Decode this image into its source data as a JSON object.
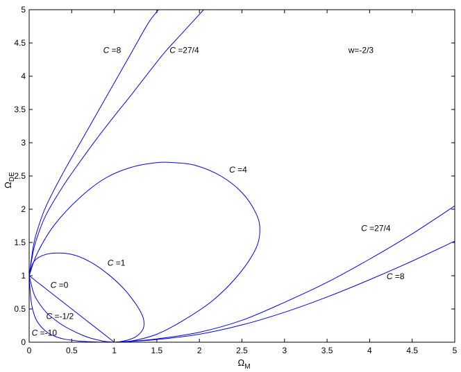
{
  "chart_data": {
    "type": "line",
    "title": "",
    "xlabel": {
      "main": "Ω",
      "sub": "M"
    },
    "ylabel": {
      "main": "Ω",
      "sub": "DE"
    },
    "xlim": [
      0,
      5
    ],
    "ylim": [
      0,
      5
    ],
    "xticks": [
      "0",
      "0.5",
      "1",
      "1.5",
      "2",
      "2.5",
      "3",
      "3.5",
      "4",
      "4.5",
      "5"
    ],
    "yticks": [
      "0",
      "0.5",
      "1",
      "1.5",
      "2",
      "2.5",
      "3",
      "3.5",
      "4",
      "4.5",
      "5"
    ],
    "grid": false,
    "line_color": "#0000ff",
    "annotation": "w=-2/3",
    "series": [
      {
        "name": "C =8",
        "x": [
          0,
          0.05,
          0.1,
          0.2,
          0.4,
          0.6,
          0.8,
          1.0,
          1.2,
          1.4,
          1.52
        ],
        "y": [
          1.0,
          1.45,
          1.7,
          2.05,
          2.55,
          3.0,
          3.45,
          3.9,
          4.35,
          4.8,
          5.0
        ]
      },
      {
        "name": "C =27/4",
        "x": [
          0,
          0.05,
          0.1,
          0.2,
          0.4,
          0.6,
          0.8,
          1.0,
          1.2,
          1.4,
          1.6,
          1.8,
          2.05
        ],
        "y": [
          1.0,
          1.38,
          1.6,
          1.92,
          2.35,
          2.72,
          3.07,
          3.4,
          3.72,
          4.05,
          4.37,
          4.65,
          5.0
        ]
      },
      {
        "name": "C =4",
        "x": [
          0,
          0.1,
          0.3,
          0.6,
          0.9,
          1.2,
          1.5,
          1.7,
          1.95,
          2.25,
          2.5,
          2.66,
          2.71,
          2.66,
          2.45,
          2.15,
          1.8,
          1.5,
          1.25,
          1.1,
          1.0
        ],
        "y": [
          1.0,
          1.35,
          1.77,
          2.18,
          2.47,
          2.63,
          2.7,
          2.7,
          2.66,
          2.5,
          2.25,
          1.95,
          1.7,
          1.4,
          1.0,
          0.62,
          0.32,
          0.12,
          0.03,
          0.005,
          0
        ]
      },
      {
        "name": "C =1",
        "x": [
          0,
          0.05,
          0.15,
          0.3,
          0.5,
          0.7,
          0.9,
          1.1,
          1.25,
          1.33,
          1.35,
          1.33,
          1.25,
          1.15,
          1.05,
          1.0
        ],
        "y": [
          1.0,
          1.2,
          1.3,
          1.34,
          1.32,
          1.22,
          1.05,
          0.82,
          0.58,
          0.4,
          0.28,
          0.18,
          0.08,
          0.03,
          0.005,
          0
        ]
      },
      {
        "name": "C =0",
        "x": [
          0,
          1
        ],
        "y": [
          1,
          0
        ]
      },
      {
        "name": "C =-1/2",
        "x": [
          0,
          0.05,
          0.1,
          0.2,
          0.3,
          0.4,
          0.5,
          0.6,
          0.7,
          0.8,
          0.9,
          1.0
        ],
        "y": [
          1.0,
          0.75,
          0.62,
          0.45,
          0.34,
          0.25,
          0.18,
          0.12,
          0.07,
          0.035,
          0.01,
          0
        ]
      },
      {
        "name": "C =-10",
        "x": [
          0,
          0.02,
          0.05,
          0.1,
          0.2,
          0.3,
          0.4,
          0.5,
          0.6,
          0.7,
          0.8,
          0.9,
          1.0
        ],
        "y": [
          1.0,
          0.65,
          0.45,
          0.3,
          0.16,
          0.09,
          0.05,
          0.03,
          0.015,
          0.008,
          0.003,
          0.001,
          0
        ]
      },
      {
        "name": "C =27/4",
        "x": [
          1.0,
          1.2,
          1.5,
          2.0,
          2.5,
          3.0,
          3.5,
          4.0,
          4.5,
          5.0
        ],
        "y": [
          0,
          0.015,
          0.05,
          0.15,
          0.33,
          0.6,
          0.9,
          1.25,
          1.63,
          2.05
        ]
      },
      {
        "name": "C =8",
        "x": [
          1.0,
          1.2,
          1.5,
          2.0,
          2.5,
          3.0,
          3.5,
          4.0,
          4.5,
          5.0
        ],
        "y": [
          0,
          0.012,
          0.04,
          0.12,
          0.26,
          0.45,
          0.68,
          0.94,
          1.22,
          1.52
        ]
      }
    ],
    "curve_labels": [
      {
        "name": "C",
        "value": " =8",
        "x": 0.87,
        "y": 4.35
      },
      {
        "name": "C",
        "value": " =27/4",
        "x": 1.65,
        "y": 4.35
      },
      {
        "name": "C",
        "value": " =4",
        "x": 2.35,
        "y": 2.55
      },
      {
        "name": "C",
        "value": " =1",
        "x": 0.92,
        "y": 1.15
      },
      {
        "name": "C",
        "value": " =0",
        "x": 0.25,
        "y": 0.82
      },
      {
        "name": "C",
        "value": " =-1/2",
        "x": 0.2,
        "y": 0.35
      },
      {
        "name": "C",
        "value": " =-10",
        "x": 0.03,
        "y": 0.1
      },
      {
        "name": "C",
        "value": " =27/4",
        "x": 3.9,
        "y": 1.67
      },
      {
        "name": "C",
        "value": " =8",
        "x": 4.2,
        "y": 0.95
      }
    ],
    "annotation_position": {
      "x": 3.75,
      "y": 4.35
    }
  }
}
